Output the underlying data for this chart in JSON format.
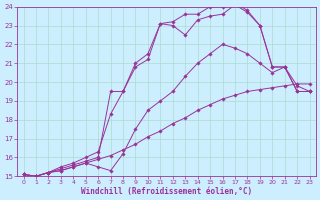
{
  "background_color": "#cceeff",
  "grid_color": "#aaddcc",
  "line_color": "#993399",
  "xlabel": "Windchill (Refroidissement éolien,°C)",
  "xlim": [
    -0.5,
    23.5
  ],
  "ylim": [
    15,
    24
  ],
  "yticks": [
    15,
    16,
    17,
    18,
    19,
    20,
    21,
    22,
    23,
    24
  ],
  "xticks": [
    0,
    1,
    2,
    3,
    4,
    5,
    6,
    7,
    8,
    9,
    10,
    11,
    12,
    13,
    14,
    15,
    16,
    17,
    18,
    19,
    20,
    21,
    22,
    23
  ],
  "series": [
    {
      "x": [
        0,
        1,
        2,
        3,
        4,
        5,
        6,
        7,
        8,
        9,
        10,
        11,
        12,
        13,
        14,
        15,
        16,
        17,
        18,
        19,
        20,
        21,
        22,
        23
      ],
      "y": [
        15.1,
        15.0,
        15.2,
        15.3,
        15.5,
        15.7,
        15.9,
        16.1,
        16.4,
        16.7,
        17.1,
        17.4,
        17.8,
        18.1,
        18.5,
        18.8,
        19.1,
        19.3,
        19.5,
        19.6,
        19.7,
        19.8,
        19.9,
        19.9
      ]
    },
    {
      "x": [
        0,
        1,
        2,
        3,
        4,
        5,
        6,
        7,
        8,
        9,
        10,
        11,
        12,
        13,
        14,
        15,
        16,
        17,
        18,
        19,
        20,
        21,
        22,
        23
      ],
      "y": [
        15.1,
        15.0,
        15.2,
        15.3,
        15.5,
        15.7,
        15.5,
        15.3,
        16.2,
        17.5,
        18.5,
        19.0,
        19.5,
        20.3,
        21.0,
        21.5,
        22.0,
        21.8,
        21.5,
        21.0,
        20.5,
        20.8,
        19.8,
        19.5
      ]
    },
    {
      "x": [
        0,
        1,
        2,
        3,
        4,
        5,
        6,
        7,
        8,
        9,
        10,
        11,
        12,
        13,
        14,
        15,
        16,
        17,
        18,
        19,
        20,
        21,
        22,
        23
      ],
      "y": [
        15.1,
        15.0,
        15.2,
        15.4,
        15.6,
        15.8,
        16.0,
        19.5,
        19.5,
        20.8,
        21.2,
        23.1,
        23.0,
        22.5,
        23.3,
        23.5,
        23.6,
        24.1,
        23.7,
        23.0,
        20.8,
        20.8,
        19.5,
        19.5
      ]
    },
    {
      "x": [
        0,
        1,
        2,
        3,
        4,
        5,
        6,
        7,
        8,
        9,
        10,
        11,
        12,
        13,
        14,
        15,
        16,
        17,
        18,
        19,
        20,
        21,
        22,
        23
      ],
      "y": [
        15.1,
        15.0,
        15.2,
        15.5,
        15.7,
        16.0,
        16.3,
        18.3,
        19.5,
        21.0,
        21.5,
        23.1,
        23.2,
        23.6,
        23.6,
        24.0,
        24.0,
        24.2,
        23.8,
        23.0,
        20.8,
        20.8,
        19.5,
        19.5
      ]
    }
  ]
}
